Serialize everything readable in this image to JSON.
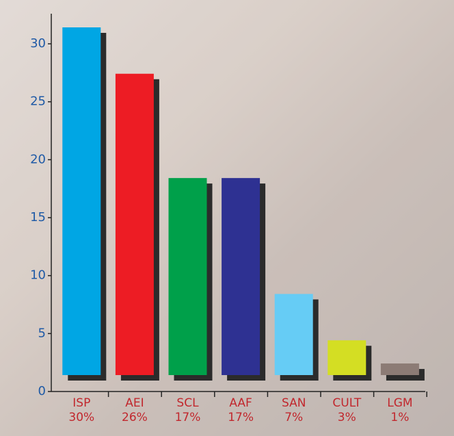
{
  "chart_data": {
    "type": "bar",
    "categories": [
      "ISP",
      "AEI",
      "SCL",
      "AAF",
      "SAN",
      "CULT",
      "LGM"
    ],
    "values": [
      30,
      26,
      17,
      17,
      7,
      3,
      1
    ],
    "value_labels": [
      "30%",
      "26%",
      "17%",
      "17%",
      "7%",
      "3%",
      "1%"
    ],
    "colors": [
      "#00a6e4",
      "#ed1c24",
      "#00a04a",
      "#2e3192",
      "#66ccf5",
      "#d4de23",
      "#8c7b75"
    ],
    "ylim": [
      0,
      30
    ],
    "yticks": [
      0,
      5,
      10,
      15,
      20,
      25,
      30
    ]
  }
}
